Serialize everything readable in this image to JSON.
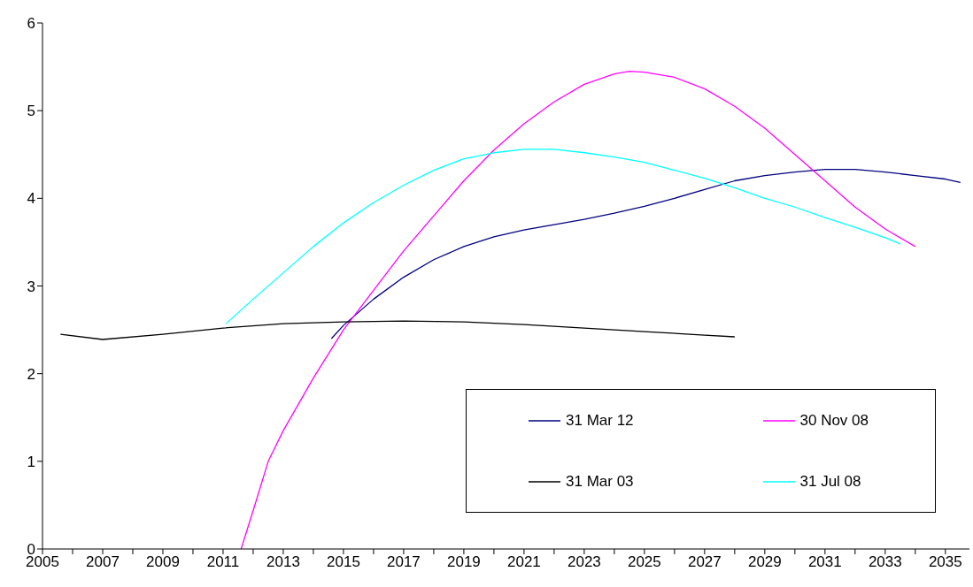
{
  "chart_data": {
    "type": "line",
    "xlim": [
      2005,
      2035.8
    ],
    "ylim": [
      0,
      6
    ],
    "yticks": [
      0,
      1,
      2,
      3,
      4,
      5,
      6
    ],
    "xticks": [
      2005,
      {
        "value": 2006,
        "label": null
      },
      2007,
      {
        "value": 2008,
        "label": null
      },
      2009,
      {
        "value": 2010,
        "label": null
      },
      2011,
      {
        "value": 2012,
        "label": null
      },
      2013,
      {
        "value": 2014,
        "label": null
      },
      2015,
      {
        "value": 2016,
        "label": null
      },
      2017,
      {
        "value": 2018,
        "label": null
      },
      2019,
      {
        "value": 2020,
        "label": null
      },
      2021,
      {
        "value": 2022,
        "label": null
      },
      2023,
      {
        "value": 2024,
        "label": null
      },
      2025,
      {
        "value": 2026,
        "label": null
      },
      2027,
      {
        "value": 2028,
        "label": null
      },
      2029,
      {
        "value": 2030,
        "label": null
      },
      2031,
      {
        "value": 2032,
        "label": null
      },
      2033,
      {
        "value": 2034,
        "label": null
      },
      2035
    ],
    "grid": false,
    "legend": "bottom right",
    "marker": "none",
    "line_style": "solid",
    "series": [
      {
        "name": "31 Mar 12",
        "color": "#000080",
        "x": [
          2014.6,
          2015,
          2016,
          2017,
          2018,
          2019,
          2020,
          2021,
          2022,
          2023,
          2024,
          2025,
          2026,
          2027,
          2028,
          2029,
          2030,
          2031,
          2032,
          2033,
          2034,
          2035,
          2035.5
        ],
        "values": [
          2.4,
          2.55,
          2.85,
          3.1,
          3.3,
          3.45,
          3.56,
          3.64,
          3.7,
          3.76,
          3.83,
          3.91,
          4.0,
          4.1,
          4.2,
          4.26,
          4.3,
          4.33,
          4.33,
          4.3,
          4.26,
          4.22,
          4.18
        ]
      },
      {
        "name": "30 Nov 08",
        "color": "#ff00ff",
        "x": [
          2011.6,
          2012.1,
          2012.5,
          2013,
          2014,
          2015,
          2016,
          2017,
          2018,
          2019,
          2020,
          2021,
          2022,
          2023,
          2024,
          2024.5,
          2025,
          2026,
          2027,
          2028,
          2029,
          2030,
          2031,
          2032,
          2033,
          2034
        ],
        "values": [
          0,
          0.55,
          1.0,
          1.35,
          1.95,
          2.5,
          2.95,
          3.4,
          3.8,
          4.2,
          4.55,
          4.85,
          5.1,
          5.3,
          5.42,
          5.45,
          5.44,
          5.38,
          5.25,
          5.05,
          4.8,
          4.5,
          4.2,
          3.9,
          3.65,
          3.45
        ]
      },
      {
        "name": "31 Mar 03",
        "color": "#000000",
        "x": [
          2005.6,
          2007,
          2009,
          2011,
          2013,
          2015,
          2017,
          2019,
          2021,
          2023,
          2025,
          2027,
          2028
        ],
        "values": [
          2.45,
          2.39,
          2.45,
          2.52,
          2.57,
          2.59,
          2.6,
          2.59,
          2.56,
          2.52,
          2.48,
          2.44,
          2.42
        ]
      },
      {
        "name": "31 Jul 08",
        "color": "#00ffff",
        "x": [
          2011.1,
          2012,
          2013,
          2014,
          2015,
          2016,
          2017,
          2018,
          2019,
          2020,
          2021,
          2022,
          2023,
          2024,
          2025,
          2026,
          2027,
          2028,
          2029,
          2030,
          2031,
          2032,
          2033,
          2033.5
        ],
        "values": [
          2.57,
          2.85,
          3.15,
          3.45,
          3.72,
          3.95,
          4.15,
          4.32,
          4.45,
          4.52,
          4.56,
          4.56,
          4.52,
          4.47,
          4.41,
          4.32,
          4.23,
          4.12,
          4.0,
          3.9,
          3.78,
          3.67,
          3.55,
          3.48
        ]
      }
    ]
  }
}
